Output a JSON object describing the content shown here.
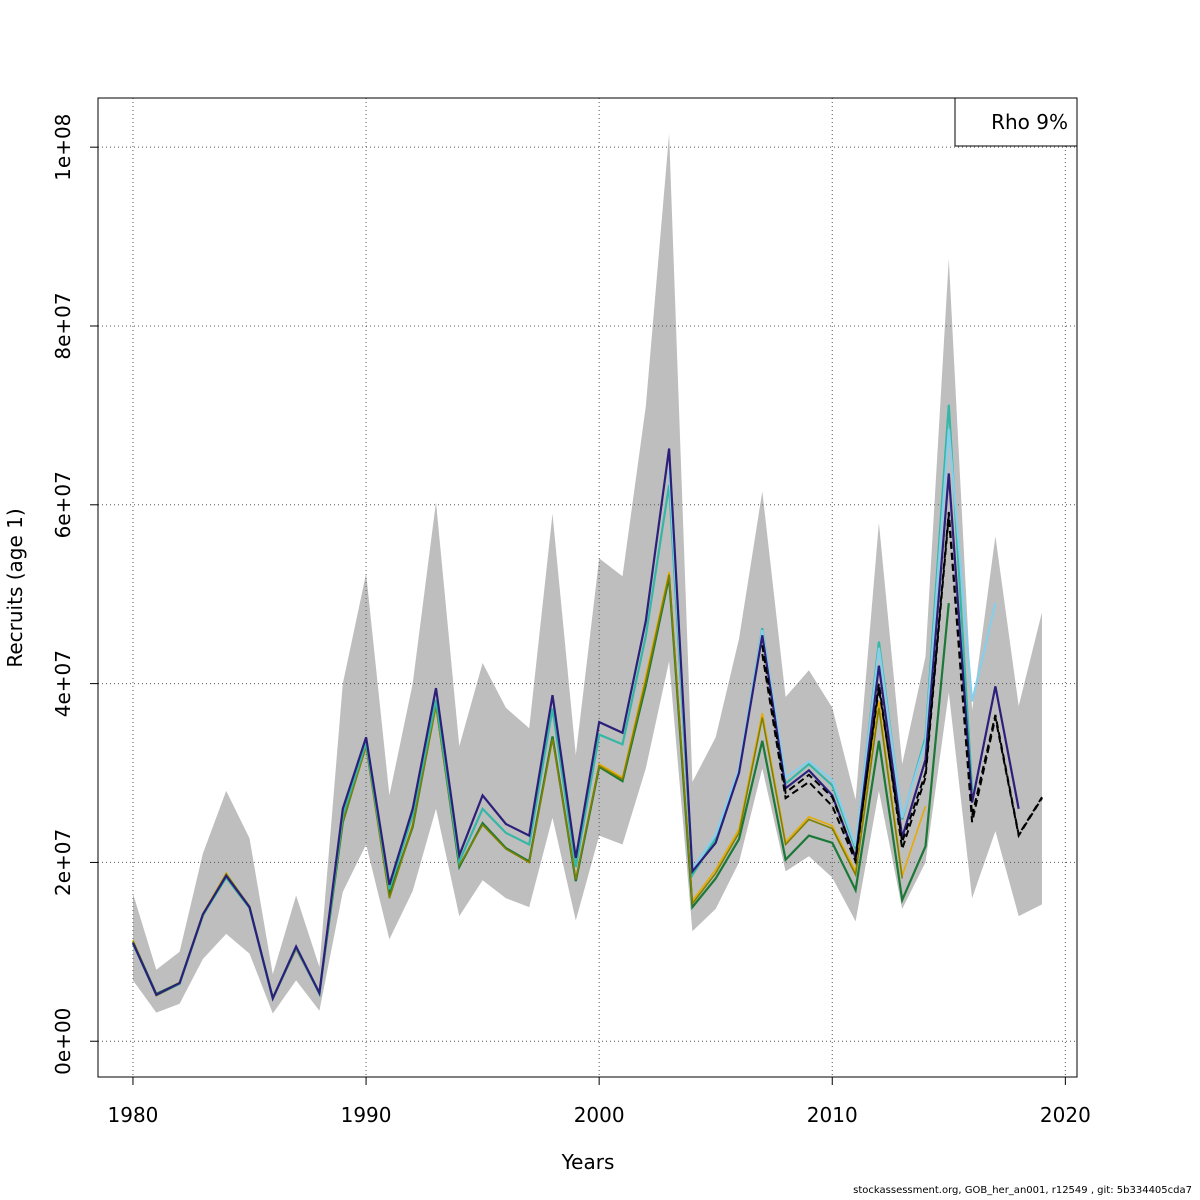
{
  "chart_data": {
    "type": "line",
    "title": "",
    "xlabel": "Years",
    "ylabel": "Recruits (age 1)",
    "xlim": [
      1978.5,
      2020.5
    ],
    "ylim": [
      -4000000,
      105500000
    ],
    "x_ticks": [
      {
        "value": 1980,
        "label": "1980"
      },
      {
        "value": 1990,
        "label": "1990"
      },
      {
        "value": 2000,
        "label": "2000"
      },
      {
        "value": 2010,
        "label": "2010"
      },
      {
        "value": 2020,
        "label": "2020"
      }
    ],
    "y_ticks": [
      {
        "value": 0,
        "label": "0e+00"
      },
      {
        "value": 20000000,
        "label": "2e+07"
      },
      {
        "value": 40000000,
        "label": "4e+07"
      },
      {
        "value": 60000000,
        "label": "6e+07"
      },
      {
        "value": 80000000,
        "label": "8e+07"
      },
      {
        "value": 100000000,
        "label": "1e+08"
      }
    ],
    "grid": true,
    "legend": {
      "position": "top-right",
      "entries": [
        "Rho 9%"
      ]
    },
    "band": {
      "color": "#bebebe",
      "x": [
        1980,
        1981,
        1982,
        1983,
        1984,
        1985,
        1986,
        1987,
        1988,
        1989,
        1990,
        1991,
        1992,
        1993,
        1994,
        1995,
        1996,
        1997,
        1998,
        1999,
        2000,
        2001,
        2002,
        2003,
        2004,
        2005,
        2006,
        2007,
        2008,
        2009,
        2010,
        2011,
        2012,
        2013,
        2014,
        2015,
        2016,
        2017,
        2018,
        2019
      ],
      "upper": [
        16500000,
        8000000,
        10000000,
        21000000,
        28000000,
        22700000,
        7500000,
        16300000,
        8300000,
        40000000,
        52300000,
        27500000,
        40000000,
        60300000,
        33000000,
        42300000,
        37300000,
        35000000,
        59000000,
        32000000,
        54000000,
        52000000,
        71000000,
        101500000,
        29000000,
        34000000,
        45000000,
        61500000,
        38500000,
        41500000,
        37300000,
        27000000,
        58000000,
        31000000,
        43000000,
        87500000,
        37000000,
        56500000,
        37500000,
        48000000
      ],
      "lower": [
        6800000,
        3200000,
        4200000,
        9200000,
        12000000,
        9800000,
        3100000,
        6800000,
        3400000,
        16700000,
        22000000,
        11400000,
        16800000,
        26000000,
        14000000,
        18000000,
        16000000,
        15000000,
        25000000,
        13500000,
        23000000,
        22000000,
        30500000,
        42500000,
        12300000,
        14800000,
        20000000,
        30500000,
        19000000,
        20700000,
        18300000,
        13400000,
        28000000,
        14800000,
        20000000,
        39000000,
        16000000,
        23500000,
        14000000,
        15300000
      ]
    },
    "series": [
      {
        "color": "#e6ab02",
        "width": 1.6,
        "dash": "",
        "x": [
          1980,
          1981,
          1982,
          1983,
          1984,
          1985,
          1986,
          1987,
          1988,
          1989,
          1990,
          1991,
          1992,
          1993,
          1994,
          1995,
          1996,
          1997,
          1998,
          1999,
          2000,
          2001,
          2002,
          2003,
          2004,
          2005,
          2006,
          2007,
          2008,
          2009,
          2010,
          2011,
          2012,
          2013,
          2014
        ],
        "y": [
          11300000,
          5200000,
          6600000,
          14300000,
          18800000,
          15000000,
          4900000,
          10500000,
          5500000,
          24700000,
          33000000,
          16200000,
          24300000,
          37400000,
          19600000,
          24300000,
          21600000,
          20000000,
          34000000,
          18000000,
          31000000,
          29500000,
          40800000,
          52500000,
          15700000,
          19200000,
          23700000,
          36700000,
          22300000,
          25100000,
          24100000,
          19000000,
          38000000,
          18500000,
          26300000
        ]
      },
      {
        "color": "#1b7837",
        "width": 2.2,
        "dash": "",
        "x": [
          1980,
          1981,
          1982,
          1983,
          1984,
          1985,
          1986,
          1987,
          1988,
          1989,
          1990,
          1991,
          1992,
          1993,
          1994,
          1995,
          1996,
          1997,
          1998,
          1999,
          2000,
          2001,
          2002,
          2003,
          2004,
          2005,
          2006,
          2007,
          2008,
          2009,
          2010,
          2011,
          2012,
          2013,
          2014,
          2015
        ],
        "y": [
          11100000,
          5300000,
          6500000,
          14100000,
          18600000,
          15000000,
          4800000,
          10400000,
          5400000,
          24500000,
          33200000,
          16400000,
          24000000,
          37800000,
          19500000,
          24400000,
          21600000,
          20100000,
          34100000,
          17900000,
          30700000,
          29100000,
          39800000,
          51900000,
          15000000,
          18200000,
          22600000,
          33600000,
          20300000,
          23000000,
          22200000,
          16900000,
          33600000,
          15800000,
          21800000,
          49000000
        ]
      },
      {
        "color": "#808000",
        "width": 1.6,
        "dash": "",
        "x": [
          1980,
          1981,
          1982,
          1983,
          1984,
          1985,
          1986,
          1987,
          1988,
          1989,
          1990,
          1991,
          1992,
          1993,
          1994,
          1995,
          1996,
          1997,
          1998,
          1999,
          2000,
          2001,
          2002,
          2003,
          2004,
          2005,
          2006,
          2007,
          2008,
          2009,
          2010,
          2011,
          2012,
          2013
        ],
        "y": [
          11200000,
          5100000,
          6400000,
          14000000,
          18700000,
          15100000,
          4900000,
          10300000,
          5400000,
          24600000,
          32900000,
          16000000,
          24100000,
          37500000,
          19700000,
          24200000,
          21500000,
          20000000,
          33800000,
          18100000,
          30800000,
          29300000,
          40300000,
          52200000,
          15400000,
          18800000,
          23300000,
          36200000,
          22000000,
          24800000,
          23800000,
          18600000,
          37300000,
          18200000
        ]
      },
      {
        "color": "#35b7a5",
        "width": 2.2,
        "dash": "",
        "x": [
          1980,
          1981,
          1982,
          1983,
          1984,
          1985,
          1986,
          1987,
          1988,
          1989,
          1990,
          1991,
          1992,
          1993,
          1994,
          1995,
          1996,
          1997,
          1998,
          1999,
          2000,
          2001,
          2002,
          2003,
          2004,
          2005,
          2006,
          2007,
          2008,
          2009,
          2010,
          2011,
          2012,
          2013,
          2014,
          2015,
          2016
        ],
        "y": [
          10900000,
          5200000,
          6400000,
          14100000,
          18300000,
          14900000,
          4800000,
          10500000,
          5300000,
          25300000,
          33400000,
          17000000,
          25300000,
          38200000,
          20100000,
          26000000,
          23300000,
          22000000,
          37200000,
          19500000,
          34300000,
          33200000,
          45300000,
          62200000,
          18600000,
          22700000,
          30200000,
          46200000,
          28800000,
          31000000,
          28600000,
          21500000,
          44700000,
          24800000,
          34000000,
          71200000,
          28000000
        ]
      },
      {
        "color": "#87ceeb",
        "width": 2.2,
        "dash": "",
        "x": [
          2003,
          2004,
          2005,
          2006,
          2007,
          2008,
          2009,
          2010,
          2011,
          2012,
          2013,
          2014,
          2015,
          2016,
          2017
        ],
        "y": [
          64000000,
          19300000,
          23100000,
          30500000,
          46000000,
          29500000,
          31300000,
          29200000,
          21800000,
          44000000,
          25000000,
          33500000,
          68500000,
          38000000,
          49000000
        ]
      },
      {
        "color": "#2b1f7a",
        "width": 2.2,
        "dash": "",
        "x": [
          1980,
          1981,
          1982,
          1983,
          1984,
          1985,
          1986,
          1987,
          1988,
          1989,
          1990,
          1991,
          1992,
          1993,
          1994,
          1995,
          1996,
          1997,
          1998,
          1999,
          2000,
          2001,
          2002,
          2003,
          2004,
          2005,
          2006,
          2007,
          2008,
          2009,
          2010,
          2011,
          2012,
          2013,
          2014,
          2015,
          2016,
          2017,
          2018
        ],
        "y": [
          11000000,
          5200000,
          6500000,
          14200000,
          18500000,
          15000000,
          4800000,
          10600000,
          5400000,
          26000000,
          34000000,
          17500000,
          26000000,
          39500000,
          20800000,
          27500000,
          24300000,
          23000000,
          38700000,
          20500000,
          35700000,
          34500000,
          47000000,
          66300000,
          19000000,
          22200000,
          30000000,
          45400000,
          28300000,
          30300000,
          27500000,
          20500000,
          42000000,
          22800000,
          31500000,
          63500000,
          26700000,
          39700000,
          26000000
        ]
      },
      {
        "color": "#000000",
        "width": 2.0,
        "dash": "7,4",
        "x": [
          2007,
          2008,
          2009,
          2010,
          2011,
          2012,
          2013,
          2014,
          2015,
          2016,
          2017,
          2018,
          2019
        ],
        "y": [
          43300000,
          27200000,
          29000000,
          26300000,
          20100000,
          40000000,
          21500000,
          29500000,
          58800000,
          24500000,
          36200000,
          23000000,
          27200000
        ]
      },
      {
        "color": "#000000",
        "width": 2.0,
        "dash": "7,4",
        "x": [
          2007,
          2008,
          2009,
          2010,
          2011,
          2012,
          2013,
          2014,
          2015,
          2016,
          2017,
          2018,
          2019
        ],
        "y": [
          44300000,
          27800000,
          29800000,
          27300000,
          20500000,
          39500000,
          22300000,
          30000000,
          59200000,
          25200000,
          36500000,
          23100000,
          27300000
        ]
      }
    ]
  },
  "footer": "stockassessment.org, GOB_her_an001, r12549 , git: 5b334405cda7"
}
